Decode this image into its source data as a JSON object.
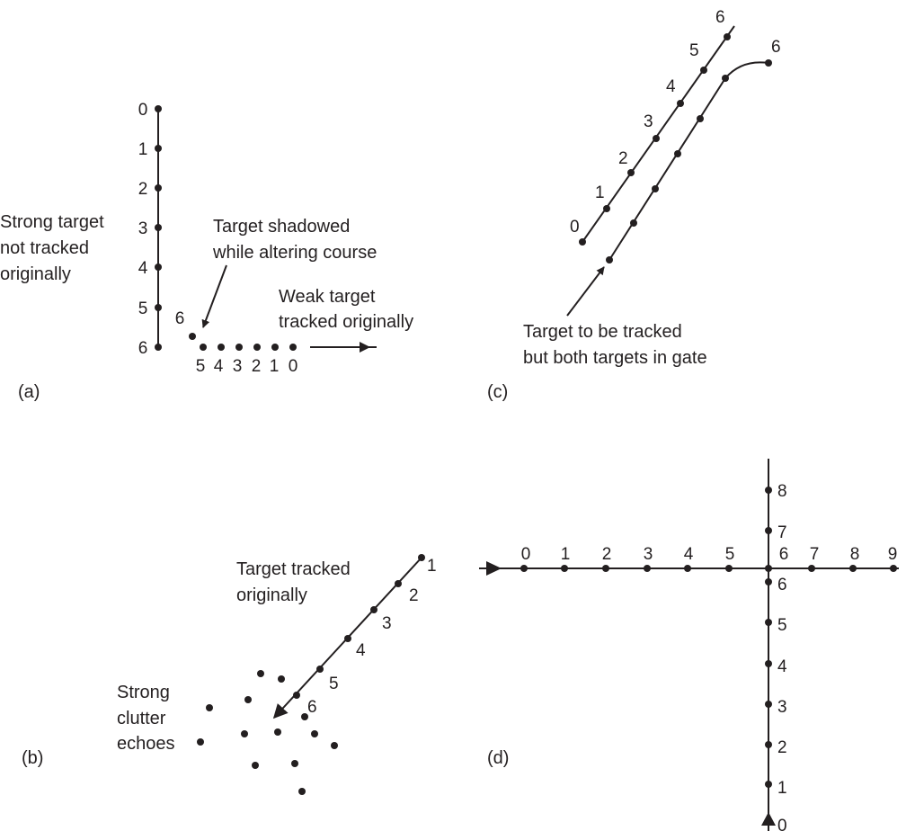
{
  "panel_a": {
    "caption": "(a)",
    "strong_label": [
      "Strong target",
      "not tracked",
      "originally"
    ],
    "shadow_label": [
      "Target shadowed",
      "while altering course"
    ],
    "weak_label": [
      "Weak target",
      "tracked originally"
    ],
    "vertical_numbers": [
      "0",
      "1",
      "2",
      "3",
      "4",
      "5",
      "6"
    ],
    "horizontal_numbers": [
      "5",
      "4",
      "3",
      "2",
      "1",
      "0"
    ],
    "turn_number": "6"
  },
  "panel_b": {
    "caption": "(b)",
    "tracked_label": [
      "Target tracked",
      "originally"
    ],
    "clutter_label": [
      "Strong",
      "clutter",
      "echoes"
    ],
    "track_numbers": [
      "1",
      "2",
      "3",
      "4",
      "5",
      "6"
    ]
  },
  "panel_c": {
    "caption": "(c)",
    "upper_numbers": [
      "0",
      "1",
      "2",
      "3",
      "4",
      "5",
      "6"
    ],
    "lower_end_number": "6",
    "gate_label": [
      "Target to be tracked",
      "but both targets in gate"
    ]
  },
  "panel_d": {
    "caption": "(d)",
    "horizontal_numbers": [
      "0",
      "1",
      "2",
      "3",
      "4",
      "5",
      "6",
      "7",
      "8",
      "9"
    ],
    "vertical_numbers": [
      "0",
      "1",
      "2",
      "3",
      "4",
      "5",
      "6",
      "7",
      "8"
    ]
  },
  "colors": {
    "ink": "#231f20",
    "background": "#ffffff"
  }
}
